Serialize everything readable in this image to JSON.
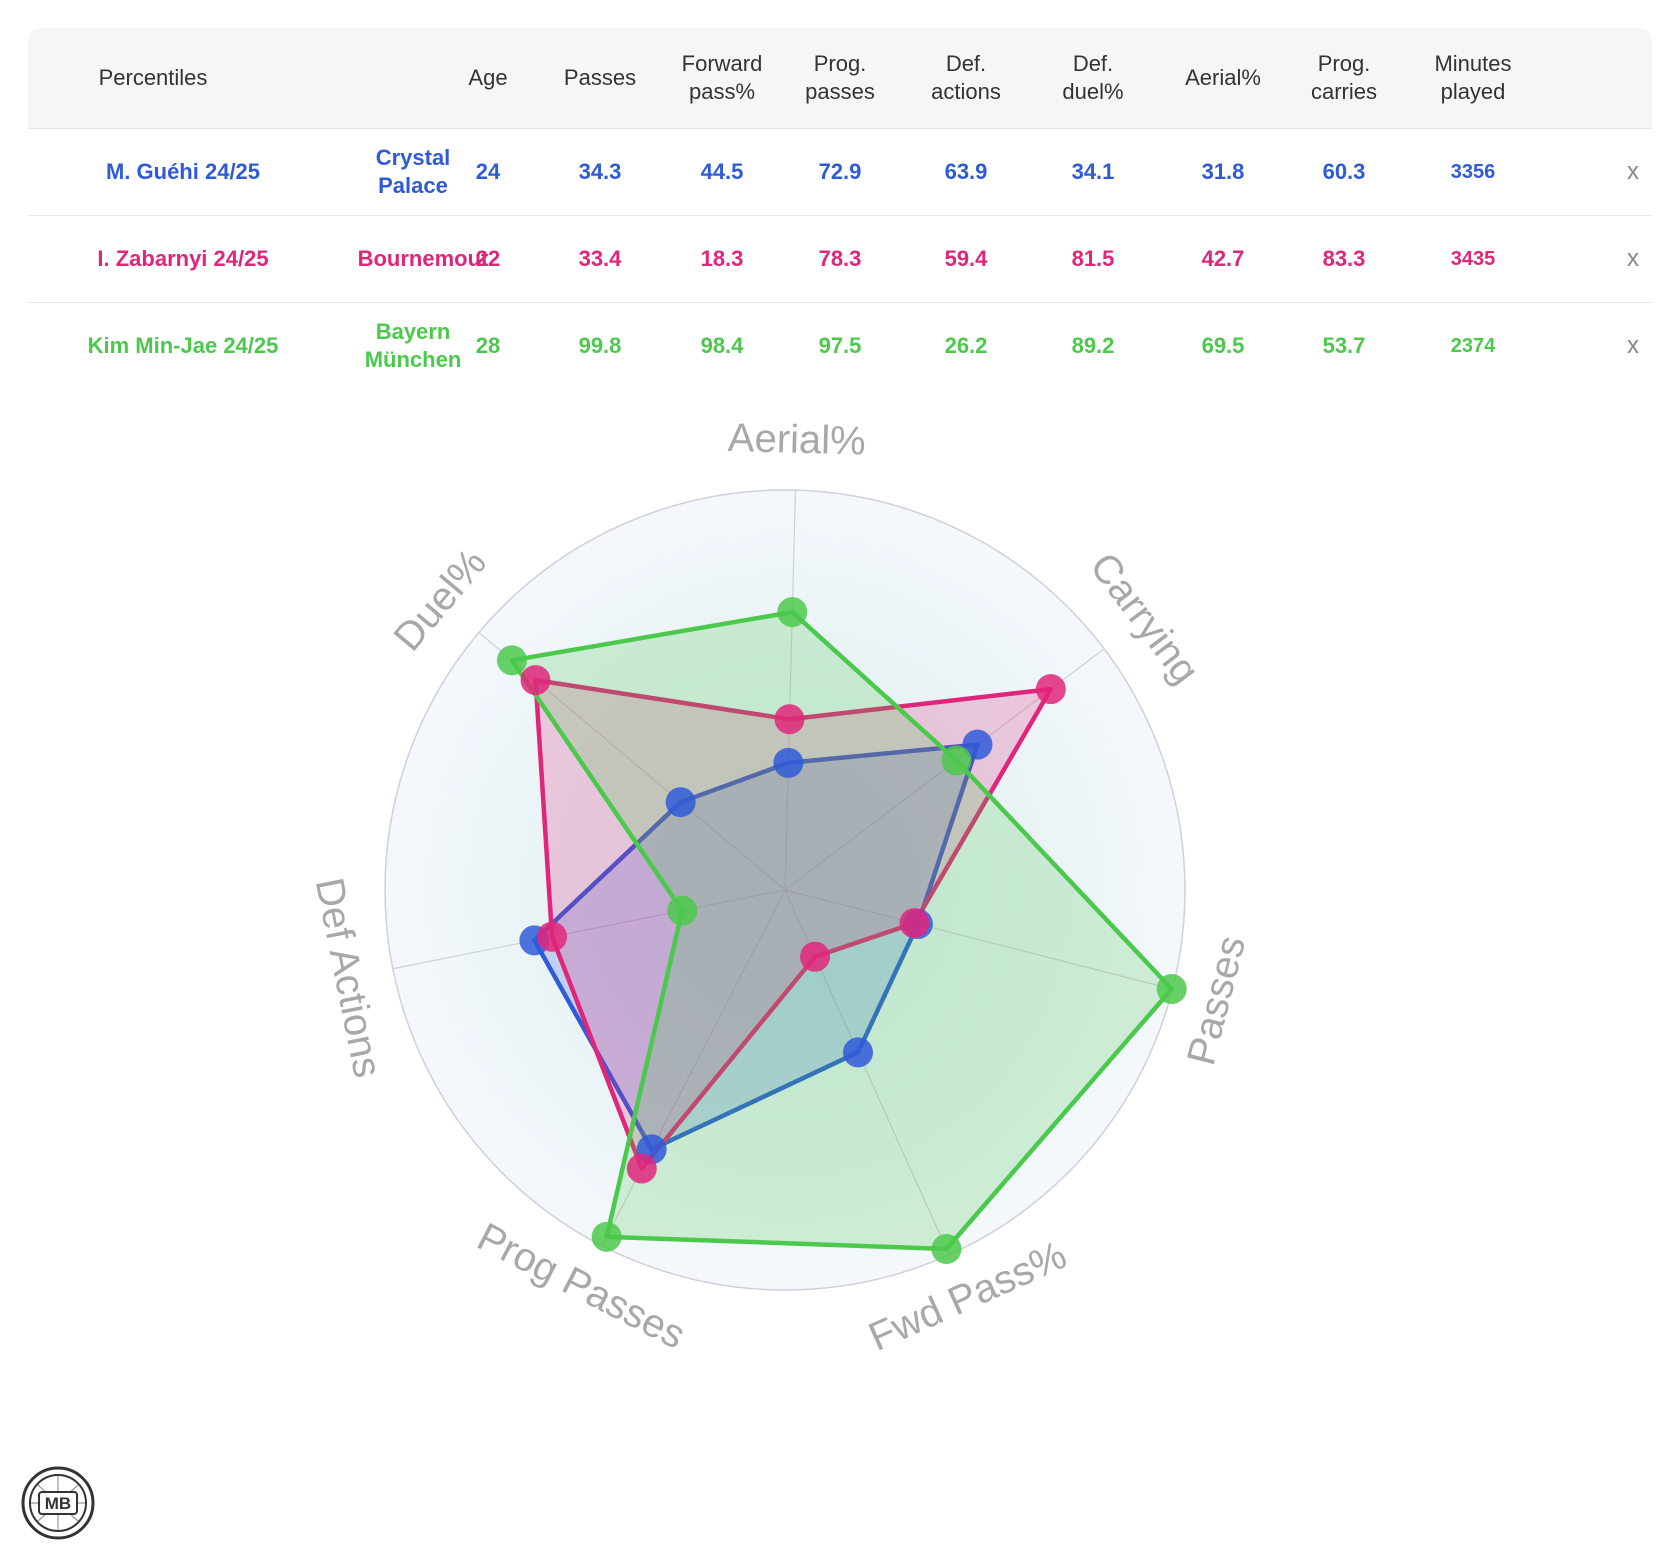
{
  "table": {
    "headers": [
      "Percentiles",
      "Age",
      "Passes",
      "Forward pass%",
      "Prog. passes",
      "Def. actions",
      "Def. duel%",
      "Aerial%",
      "Prog. carries",
      "Minutes played"
    ],
    "rows": [
      {
        "player": "M. Guéhi 24/25",
        "team": "Crystal Palace",
        "color": "#2f5bd8",
        "values": [
          "24",
          "34.3",
          "44.5",
          "72.9",
          "63.9",
          "34.1",
          "31.8",
          "60.3",
          "3356"
        ],
        "remove": "x"
      },
      {
        "player": "I. Zabarnyi 24/25",
        "team": "Bournemout",
        "color": "#e0267a",
        "values": [
          "22",
          "33.4",
          "18.3",
          "78.3",
          "59.4",
          "81.5",
          "42.7",
          "83.3",
          "3435"
        ],
        "remove": "x"
      },
      {
        "player": "Kim Min-Jae 24/25",
        "team": "Bayern München",
        "color": "#4cc94c",
        "values": [
          "28",
          "99.8",
          "98.4",
          "97.5",
          "26.2",
          "89.2",
          "69.5",
          "53.7",
          "2374"
        ],
        "remove": "x"
      }
    ]
  },
  "chart_data": {
    "type": "radar",
    "axes": [
      "Aerial%",
      "Carrying",
      "Passes",
      "Fwd Pass%",
      "Prog Passes",
      "Def Actions",
      "Duel%"
    ],
    "range": [
      0,
      100
    ],
    "series": [
      {
        "name": "M. Guéhi 24/25",
        "color": "#2f5bd8",
        "values": [
          31.8,
          60.3,
          34.3,
          44.5,
          72.9,
          63.9,
          34.1
        ]
      },
      {
        "name": "I. Zabarnyi 24/25",
        "color": "#e0267a",
        "values": [
          42.7,
          83.3,
          33.4,
          18.3,
          78.3,
          59.4,
          81.5
        ]
      },
      {
        "name": "Kim Min-Jae 24/25",
        "color": "#4cc94c",
        "values": [
          69.5,
          53.7,
          99.8,
          98.4,
          97.5,
          26.2,
          89.2
        ]
      }
    ]
  },
  "logo": {
    "text": "MB"
  }
}
